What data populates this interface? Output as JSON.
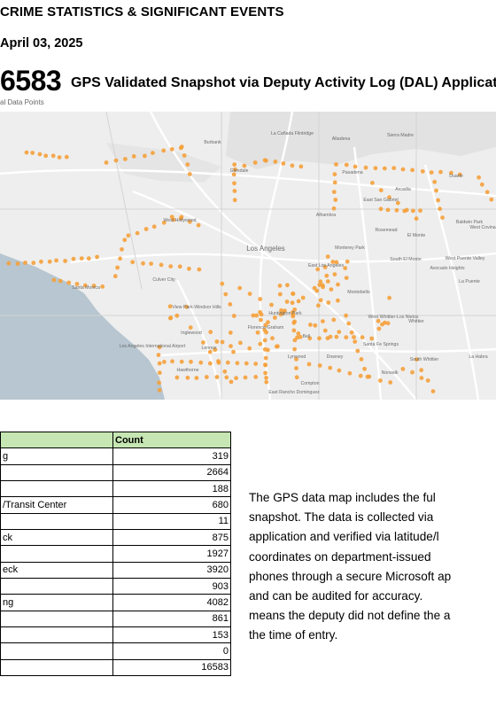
{
  "header": {
    "title": "CRIME STATISTICS & SIGNIFICANT EVENTS",
    "date": "April 03, 2025"
  },
  "summary": {
    "total": "6583",
    "subtitle": "al Data Points",
    "map_title": "GPS Validated Snapshot via Deputy Activity Log (DAL) Applicat"
  },
  "map": {
    "water_color": "#b7c6d0",
    "land_color": "#eeeeee",
    "point_color": "#f5a03a",
    "labels": [
      {
        "text": "La Cañada Flintridge"
      },
      {
        "text": "Altadena"
      },
      {
        "text": "Burbank"
      },
      {
        "text": "Sierra Madre"
      },
      {
        "text": "Glendale"
      },
      {
        "text": "Pasadena"
      },
      {
        "text": "Duarte"
      },
      {
        "text": "Arcadia"
      },
      {
        "text": "East San Gabriel"
      },
      {
        "text": "West Hollywood"
      },
      {
        "text": "Alhambra"
      },
      {
        "text": "Rosemead"
      },
      {
        "text": "El Monte"
      },
      {
        "text": "Baldwin Park"
      },
      {
        "text": "West Covina"
      },
      {
        "text": "Monterey Park"
      },
      {
        "text": "Los Angeles"
      },
      {
        "text": "East Los Angeles"
      },
      {
        "text": "South El Monte"
      },
      {
        "text": "West Puente Valley"
      },
      {
        "text": "Avocado Heights"
      },
      {
        "text": "La Puente"
      },
      {
        "text": "Culver City"
      },
      {
        "text": "Montebello"
      },
      {
        "text": "Santa Monica"
      },
      {
        "text": "View Park-Windsor Hills"
      },
      {
        "text": "Huntington Park"
      },
      {
        "text": "Florence-Graham"
      },
      {
        "text": "Bell"
      },
      {
        "text": "West Whittier-Los Nietos"
      },
      {
        "text": "Whittier"
      },
      {
        "text": "Inglewood"
      },
      {
        "text": "Los Angeles International Airport"
      },
      {
        "text": "Lennox"
      },
      {
        "text": "Lynwood"
      },
      {
        "text": "Downey"
      },
      {
        "text": "Santa Fe Springs"
      },
      {
        "text": "Hawthorne"
      },
      {
        "text": "Compton"
      },
      {
        "text": "Norwalk"
      },
      {
        "text": "South Whittier"
      },
      {
        "text": "La Habra"
      },
      {
        "text": "East Rancho Dominguez"
      }
    ]
  },
  "table": {
    "header": {
      "col1": "",
      "col2": "Count"
    },
    "rows": [
      {
        "label": "g",
        "count": "319"
      },
      {
        "label": "",
        "count": "2664"
      },
      {
        "label": "",
        "count": "188"
      },
      {
        "label": "/Transit Center",
        "count": "680"
      },
      {
        "label": "",
        "count": "11"
      },
      {
        "label": "ck",
        "count": "875"
      },
      {
        "label": "",
        "count": "1927"
      },
      {
        "label": "eck",
        "count": "3920"
      },
      {
        "label": "",
        "count": "903"
      },
      {
        "label": "ng",
        "count": "4082"
      },
      {
        "label": "",
        "count": "861"
      },
      {
        "label": "",
        "count": "153"
      },
      {
        "label": "",
        "count": "0"
      },
      {
        "label": "",
        "count": "16583"
      }
    ]
  },
  "paragraph": {
    "lines": [
      "The GPS data map includes the ful",
      "snapshot. The data is collected via",
      "application and verified via latitude/l",
      "coordinates on department-issued",
      "phones through a secure Microsoft ap",
      "and can be audited for accuracy.",
      "means the deputy did not define the a",
      "the time of entry."
    ]
  }
}
